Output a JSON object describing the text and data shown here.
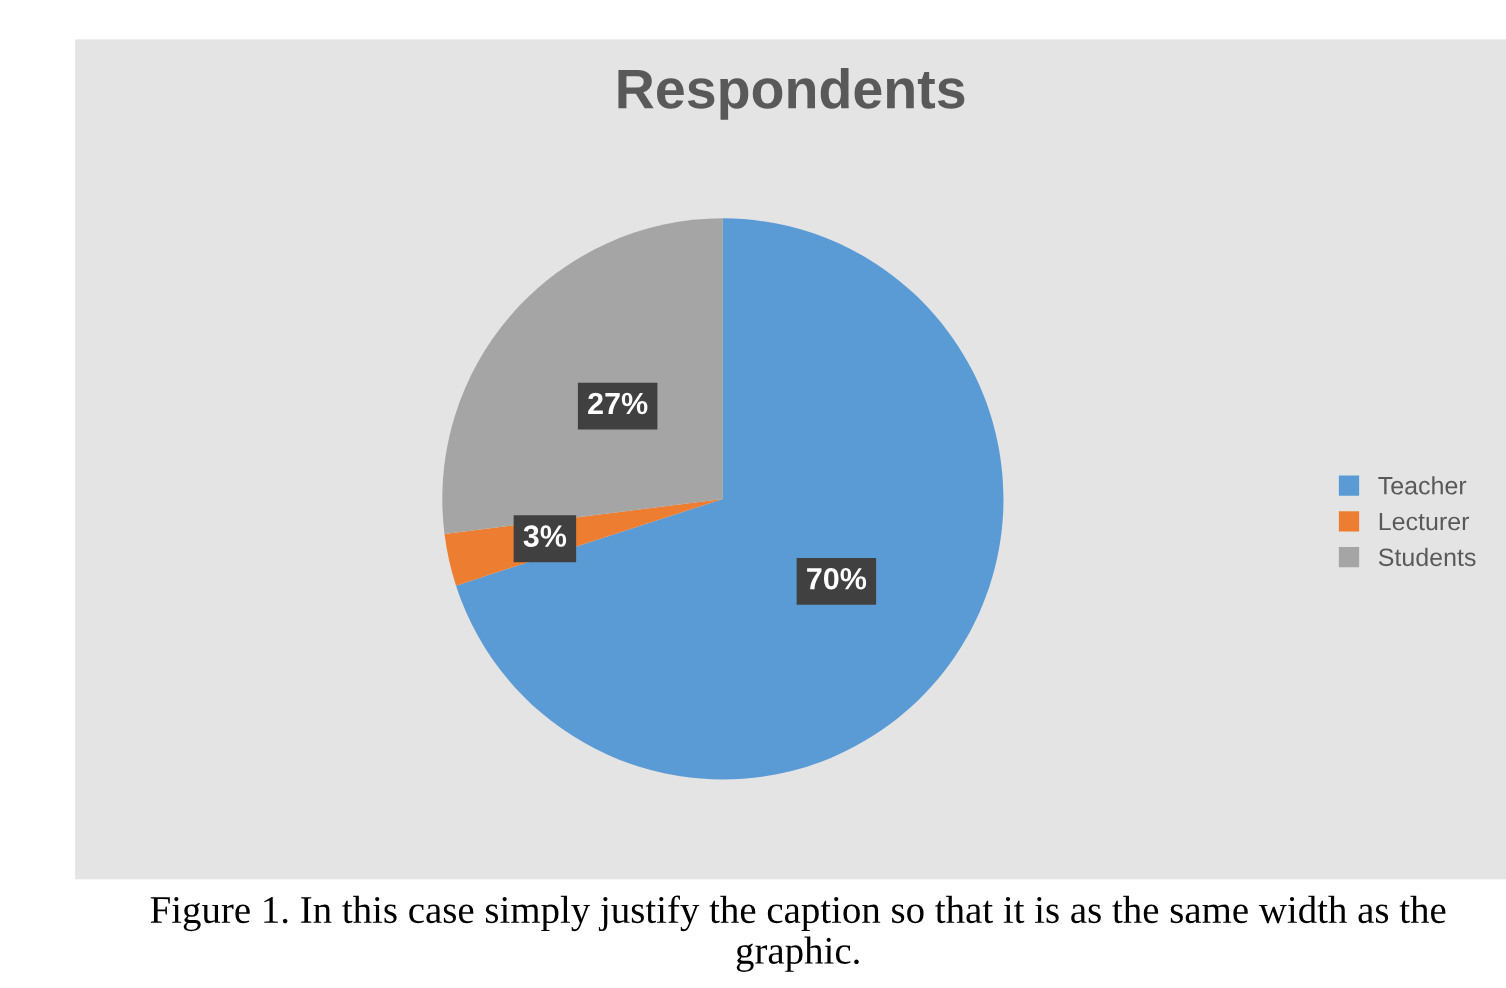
{
  "chart_data": {
    "type": "pie",
    "title": "Respondents",
    "categories": [
      "Teacher",
      "Lecturer",
      "Students"
    ],
    "values": [
      70,
      3,
      27
    ],
    "colors": [
      "#5b9bd5",
      "#ed7d31",
      "#a5a5a5"
    ],
    "value_labels": [
      "70%",
      "3%",
      "27%"
    ],
    "legend": "right",
    "annotations": [
      "Figure 1. In this case simply justify the caption so that it is as the same width as the graphic."
    ]
  }
}
